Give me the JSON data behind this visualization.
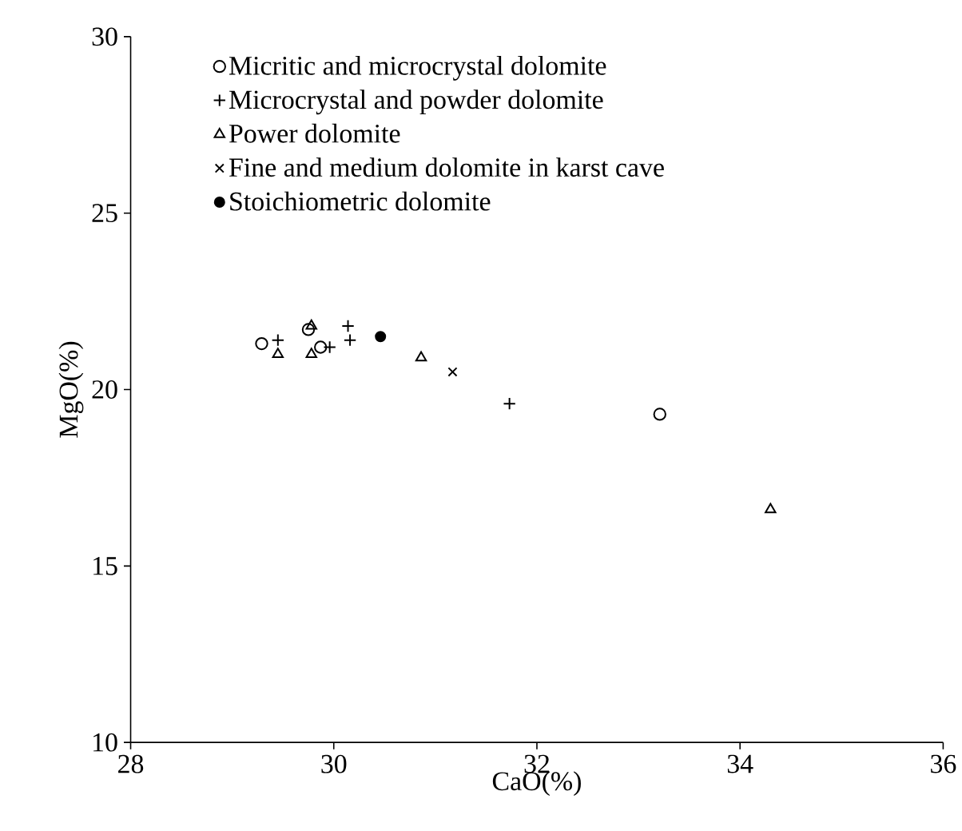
{
  "chart_data": {
    "type": "scatter",
    "xlabel": "CaO(%)",
    "ylabel": "MgO(%)",
    "xlim": [
      28,
      36
    ],
    "ylim": [
      10,
      30
    ],
    "xticks": [
      28,
      30,
      32,
      34,
      36
    ],
    "yticks": [
      10,
      15,
      20,
      25,
      30
    ],
    "grid": false,
    "legend": "top",
    "series": [
      {
        "name": "Micritic and microcrystal dolomite",
        "color": "#000000",
        "marker": "circle",
        "x": [
          29.29,
          29.75,
          29.87,
          33.21
        ],
        "values": [
          21.3,
          21.7,
          21.2,
          19.3
        ]
      },
      {
        "name": "Microcrystal and powder dolomite",
        "color": "#000000",
        "marker": "plus",
        "x": [
          29.45,
          30.14,
          30.16,
          29.96,
          31.73
        ],
        "values": [
          21.4,
          21.8,
          21.4,
          21.2,
          19.6
        ]
      },
      {
        "name": "Power dolomite",
        "color": "#000000",
        "marker": "triangle",
        "x": [
          29.45,
          29.78,
          29.78,
          30.86,
          34.3
        ],
        "values": [
          21.0,
          21.8,
          21.0,
          20.9,
          16.6
        ]
      },
      {
        "name": "Fine and medium dolomite in karst cave",
        "color": "#000000",
        "marker": "cross",
        "x": [
          31.17
        ],
        "values": [
          20.5
        ]
      },
      {
        "name": "Stoichiometric dolomite",
        "color": "#000000",
        "marker": "filled circle",
        "x": [
          30.46
        ],
        "values": [
          21.5
        ]
      }
    ]
  }
}
